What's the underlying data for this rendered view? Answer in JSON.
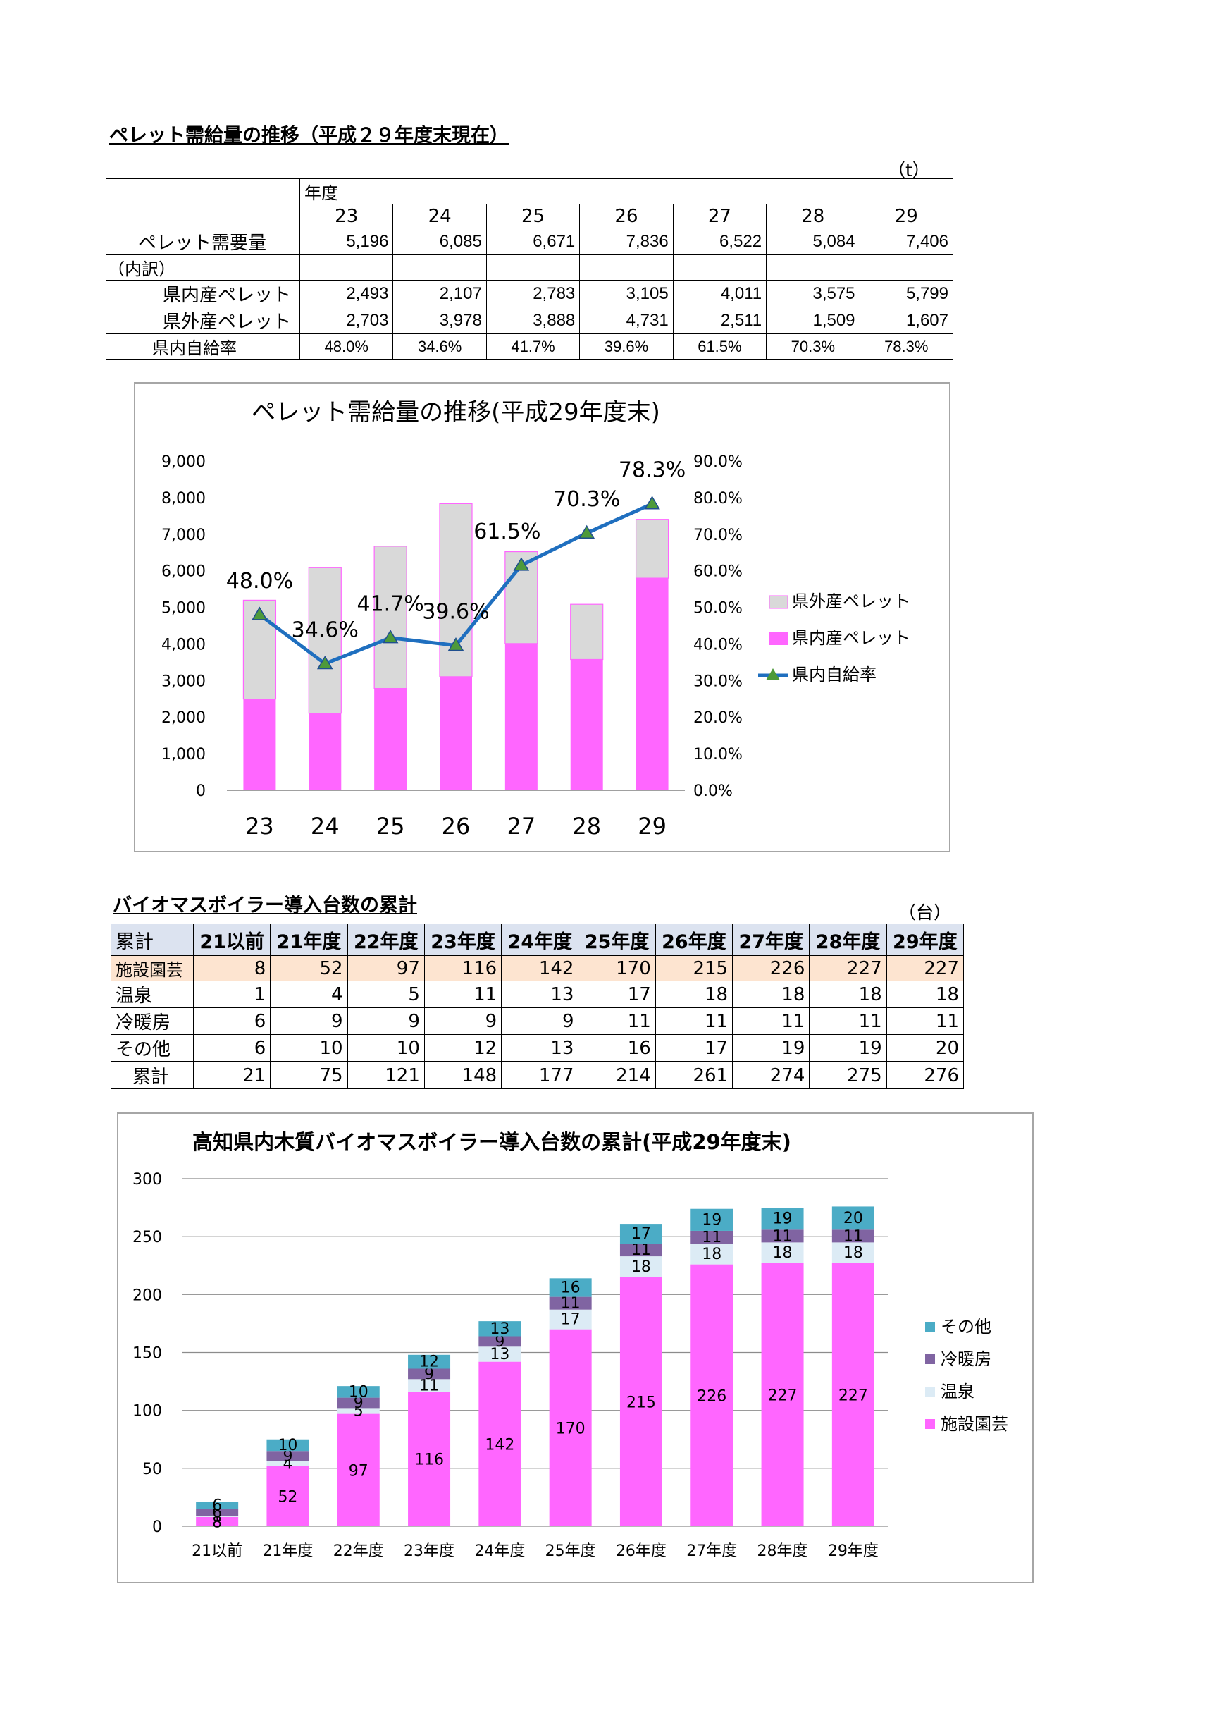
{
  "section1": {
    "heading": "ペレット需給量の推移（平成２９年度末現在）",
    "unit": "（t）",
    "table": {
      "nendo_label": "年度",
      "years": [
        "23",
        "24",
        "25",
        "26",
        "27",
        "28",
        "29"
      ],
      "rows": [
        {
          "label": "ペレット需要量",
          "values": [
            "5,196",
            "6,085",
            "6,671",
            "7,836",
            "6,522",
            "5,084",
            "7,406"
          ]
        },
        {
          "label": "（内訳）",
          "values": [
            "",
            "",
            "",
            "",
            "",
            "",
            ""
          ]
        },
        {
          "label": "県内産ペレット",
          "values": [
            "2,493",
            "2,107",
            "2,783",
            "3,105",
            "4,011",
            "3,575",
            "5,799"
          ]
        },
        {
          "label": "県外産ペレット",
          "values": [
            "2,703",
            "3,978",
            "3,888",
            "4,731",
            "2,511",
            "1,509",
            "1,607"
          ]
        },
        {
          "label": "県内自給率",
          "values": [
            "48.0%",
            "34.6%",
            "41.7%",
            "39.6%",
            "61.5%",
            "70.3%",
            "78.3%"
          ]
        }
      ]
    }
  },
  "chart1_legend": [
    "県外産ペレット",
    "県内産ペレット",
    "県内自給率"
  ],
  "section2": {
    "heading": "バイオマスボイラー導入台数の累計",
    "unit": "（台）",
    "table": {
      "header": [
        "累計",
        "21以前",
        "21年度",
        "22年度",
        "23年度",
        "24年度",
        "25年度",
        "26年度",
        "27年度",
        "28年度",
        "29年度"
      ],
      "rows": [
        {
          "label": "施設園芸",
          "values": [
            "8",
            "52",
            "97",
            "116",
            "142",
            "170",
            "215",
            "226",
            "227",
            "227"
          ]
        },
        {
          "label": "温泉",
          "values": [
            "1",
            "4",
            "5",
            "11",
            "13",
            "17",
            "18",
            "18",
            "18",
            "18"
          ]
        },
        {
          "label": "冷暖房",
          "values": [
            "6",
            "9",
            "9",
            "9",
            "9",
            "11",
            "11",
            "11",
            "11",
            "11"
          ]
        },
        {
          "label": "その他",
          "values": [
            "6",
            "10",
            "10",
            "12",
            "13",
            "16",
            "17",
            "19",
            "19",
            "20"
          ]
        },
        {
          "label": "累計",
          "values": [
            "21",
            "75",
            "121",
            "148",
            "177",
            "214",
            "261",
            "274",
            "275",
            "276"
          ]
        }
      ]
    }
  },
  "chart2_legend": [
    "その他",
    "冷暖房",
    "温泉",
    "施設園芸"
  ],
  "chart_data": [
    {
      "type": "bar",
      "title": "ペレット需給量の推移(平成29年度末)",
      "categories": [
        "23",
        "24",
        "25",
        "26",
        "27",
        "28",
        "29"
      ],
      "stacked": true,
      "series": [
        {
          "name": "県内産ペレット",
          "values": [
            2493,
            2107,
            2783,
            3105,
            4011,
            3575,
            5799
          ],
          "color": "#ff66ff",
          "axis": "left"
        },
        {
          "name": "県外産ペレット",
          "values": [
            2703,
            3978,
            3888,
            4731,
            2511,
            1509,
            1607
          ],
          "color": "#d9d9d9",
          "axis": "left"
        },
        {
          "name": "県内自給率",
          "type": "line",
          "values": [
            48.0,
            34.6,
            41.7,
            39.6,
            61.5,
            70.3,
            78.3
          ],
          "color": "#1f6fbf",
          "axis": "right"
        }
      ],
      "data_labels": [
        "48.0%",
        "34.6%",
        "41.7%",
        "39.6%",
        "61.5%",
        "70.3%",
        "78.3%"
      ],
      "ylim": [
        0,
        9000
      ],
      "y_ticks": [
        "0",
        "1,000",
        "2,000",
        "3,000",
        "4,000",
        "5,000",
        "6,000",
        "7,000",
        "8,000",
        "9,000"
      ],
      "y2lim": [
        0,
        90
      ],
      "y2_ticks": [
        "0.0%",
        "10.0%",
        "20.0%",
        "30.0%",
        "40.0%",
        "50.0%",
        "60.0%",
        "70.0%",
        "80.0%",
        "90.0%"
      ],
      "legend": "right",
      "grid": false
    },
    {
      "type": "bar",
      "title": "高知県内木質バイオマスボイラー導入台数の累計(平成29年度末)",
      "categories": [
        "21以前",
        "21年度",
        "22年度",
        "23年度",
        "24年度",
        "25年度",
        "26年度",
        "27年度",
        "28年度",
        "29年度"
      ],
      "stacked": true,
      "series": [
        {
          "name": "施設園芸",
          "values": [
            8,
            52,
            97,
            116,
            142,
            170,
            215,
            226,
            227,
            227
          ],
          "color": "#ff66ff"
        },
        {
          "name": "温泉",
          "values": [
            1,
            4,
            5,
            11,
            13,
            17,
            18,
            18,
            18,
            18
          ],
          "color": "#dcebf5"
        },
        {
          "name": "冷暖房",
          "values": [
            6,
            9,
            9,
            9,
            9,
            11,
            11,
            11,
            11,
            11
          ],
          "color": "#8064a2"
        },
        {
          "name": "その他",
          "values": [
            6,
            10,
            10,
            12,
            13,
            16,
            17,
            19,
            19,
            20
          ],
          "color": "#4bacc6"
        }
      ],
      "ylim": [
        0,
        300
      ],
      "y_ticks": [
        "0",
        "50",
        "100",
        "150",
        "200",
        "250",
        "300"
      ],
      "legend": "right",
      "grid": true
    }
  ]
}
